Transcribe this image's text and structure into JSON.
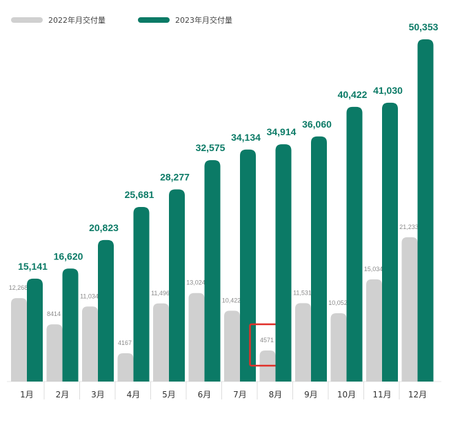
{
  "chart_data": {
    "type": "bar",
    "categories": [
      "1月",
      "2月",
      "3月",
      "4月",
      "5月",
      "6月",
      "7月",
      "8月",
      "9月",
      "10月",
      "11月",
      "12月"
    ],
    "series": [
      {
        "name": "2022年月交付量",
        "color": "#d0d0d0",
        "values": [
          12268,
          8414,
          11034,
          4167,
          11496,
          13024,
          10422,
          4571,
          11531,
          10052,
          15034,
          21233
        ],
        "labels": [
          "12,268",
          "8414",
          "11,034",
          "4167",
          "11,496",
          "13,024",
          "10,422",
          "4571",
          "11,531",
          "10,052",
          "15,034",
          "21,233"
        ]
      },
      {
        "name": "2023年月交付量",
        "color": "#0b7a66",
        "values": [
          15141,
          16620,
          20823,
          25681,
          28277,
          32575,
          34134,
          34914,
          36060,
          40422,
          41030,
          50353
        ],
        "labels": [
          "15,141",
          "16,620",
          "20,823",
          "25,681",
          "28,277",
          "32,575",
          "34,134",
          "34,914",
          "36,060",
          "40,422",
          "41,030",
          "50,353"
        ]
      }
    ],
    "highlight": {
      "category": "8月",
      "series": "2022年月交付量",
      "color": "#e0302a"
    },
    "ylim": [
      0,
      50353
    ],
    "grid": false,
    "legend": "top-left"
  }
}
